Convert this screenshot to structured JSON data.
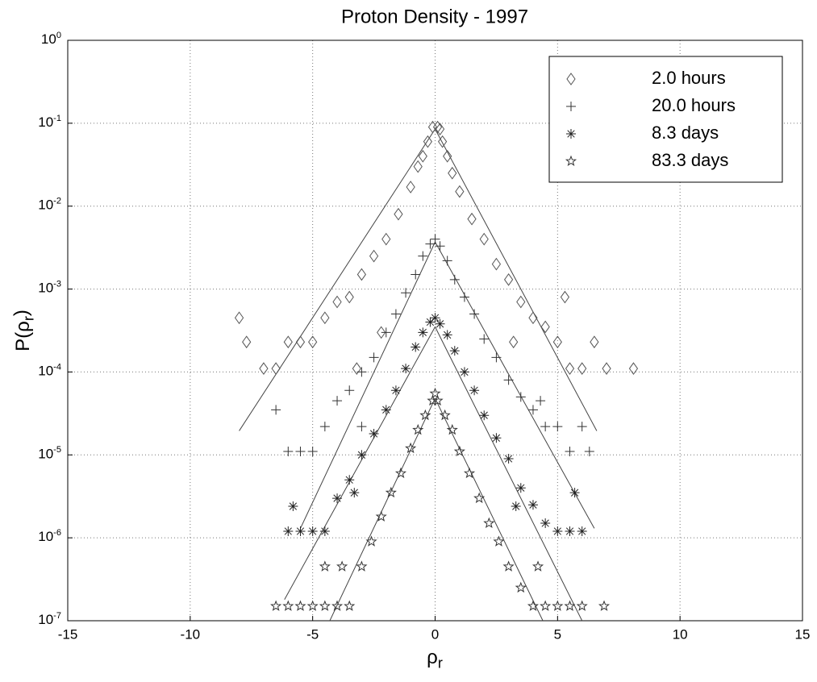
{
  "chart_data": {
    "type": "scatter",
    "title": "Proton Density - 1997",
    "xlabel": "ρ_r",
    "ylabel": "P(ρ_r)",
    "xlim": [
      -15,
      15
    ],
    "xticks": [
      -15,
      -10,
      -5,
      0,
      5,
      10,
      15
    ],
    "ylim": [
      1e-07,
      1
    ],
    "yticks": [
      {
        "value": 1e-07,
        "label": "10^-7"
      },
      {
        "value": 1e-06,
        "label": "10^-6"
      },
      {
        "value": 1e-05,
        "label": "10^-5"
      },
      {
        "value": 0.0001,
        "label": "10^-4"
      },
      {
        "value": 0.001,
        "label": "10^-3"
      },
      {
        "value": 0.01,
        "label": "10^-2"
      },
      {
        "value": 0.1,
        "label": "10^-1"
      },
      {
        "value": 1,
        "label": "10^0"
      }
    ],
    "log_y": true,
    "grid": true,
    "legend": "upper right",
    "series": [
      {
        "name": "2.0 hours",
        "marker": "diamond",
        "color": "#555555",
        "x": [
          -0.1,
          0.1,
          0.2,
          -0.3,
          0.3,
          -0.5,
          0.5,
          -0.7,
          0.7,
          -1,
          1,
          -1.5,
          1.5,
          -2,
          2,
          -2.5,
          2.5,
          -3,
          3,
          -3.5,
          3.5,
          -4,
          4,
          -4.5,
          4.5,
          -5,
          5,
          -5.5,
          5.5,
          -6,
          6,
          -6.5,
          6.5,
          -7,
          7,
          -8,
          -7.7,
          8.1,
          5.3,
          -3.2,
          3.2,
          -2.2
        ],
        "values": [
          0.09,
          0.09,
          0.085,
          0.06,
          0.06,
          0.04,
          0.04,
          0.03,
          0.025,
          0.017,
          0.015,
          0.008,
          0.007,
          0.004,
          0.004,
          0.0025,
          0.002,
          0.0015,
          0.0013,
          0.0008,
          0.0007,
          0.0007,
          0.00045,
          0.00045,
          0.00035,
          0.00023,
          0.00023,
          0.00023,
          0.00011,
          0.00023,
          0.00011,
          0.00011,
          0.00023,
          0.00011,
          0.00011,
          0.00045,
          0.00023,
          0.00011,
          0.0008,
          0.00011,
          0.00023,
          0.0003
        ]
      },
      {
        "name": "20.0 hours",
        "marker": "plus",
        "color": "#333333",
        "x": [
          0,
          -0.2,
          0.2,
          -0.5,
          0.5,
          -0.8,
          0.8,
          -1.2,
          1.2,
          -1.6,
          1.6,
          -2,
          2,
          -2.5,
          2.5,
          -3,
          3,
          -3.5,
          3.5,
          -4,
          4,
          -4.5,
          4.5,
          -5,
          5,
          -5.5,
          5.5,
          -6,
          6.3,
          -6.5,
          4.3,
          -3,
          6.0
        ],
        "values": [
          0.004,
          0.0035,
          0.0033,
          0.0025,
          0.0022,
          0.0015,
          0.0013,
          0.0009,
          0.0008,
          0.0005,
          0.0005,
          0.0003,
          0.00025,
          0.00015,
          0.00015,
          0.0001,
          8e-05,
          6e-05,
          5e-05,
          4.5e-05,
          3.5e-05,
          2.2e-05,
          2.2e-05,
          1.1e-05,
          2.2e-05,
          1.1e-05,
          1.1e-05,
          1.1e-05,
          1.1e-05,
          3.5e-05,
          4.5e-05,
          2.2e-05,
          2.2e-05
        ]
      },
      {
        "name": "8.3 days",
        "marker": "asterisk",
        "color": "#222222",
        "x": [
          0,
          -0.2,
          0.2,
          -0.5,
          0.5,
          -0.8,
          0.8,
          -1.2,
          1.2,
          -1.6,
          1.6,
          -2,
          2,
          -2.5,
          2.5,
          -3,
          3,
          -3.5,
          3.5,
          -4,
          4,
          -4.5,
          4.5,
          -5,
          5,
          -5.5,
          5.5,
          -6,
          6,
          -5.8,
          5.7,
          -3.3,
          3.3
        ],
        "values": [
          0.00045,
          0.0004,
          0.00038,
          0.0003,
          0.00028,
          0.0002,
          0.00018,
          0.00011,
          0.0001,
          6e-05,
          6e-05,
          3.5e-05,
          3e-05,
          1.8e-05,
          1.6e-05,
          1e-05,
          9e-06,
          5e-06,
          4e-06,
          3e-06,
          2.5e-06,
          1.2e-06,
          1.5e-06,
          1.2e-06,
          1.2e-06,
          1.2e-06,
          1.2e-06,
          1.2e-06,
          1.2e-06,
          2.4e-06,
          3.5e-06,
          3.5e-06,
          2.4e-06
        ]
      },
      {
        "name": "83.3 days",
        "marker": "star",
        "color": "#333333",
        "x": [
          0,
          -0.1,
          0.1,
          -0.4,
          0.4,
          -0.7,
          0.7,
          -1,
          1,
          -1.4,
          1.4,
          -1.8,
          1.8,
          -2.2,
          2.2,
          -2.6,
          2.6,
          -3,
          3,
          -3.5,
          3.5,
          -4,
          4,
          -4.5,
          4.5,
          -5,
          5,
          -5.5,
          5.5,
          -6,
          6,
          -6.5,
          6.9,
          -3.8,
          -4.5,
          4.2
        ],
        "values": [
          5.5e-05,
          4.5e-05,
          4.5e-05,
          3e-05,
          3e-05,
          2e-05,
          2e-05,
          1.2e-05,
          1.1e-05,
          6e-06,
          6e-06,
          3.5e-06,
          3e-06,
          1.8e-06,
          1.5e-06,
          9e-07,
          9e-07,
          4.5e-07,
          4.5e-07,
          1.5e-07,
          2.5e-07,
          1.5e-07,
          1.5e-07,
          1.5e-07,
          1.5e-07,
          1.5e-07,
          1.5e-07,
          1.5e-07,
          1.5e-07,
          1.5e-07,
          1.5e-07,
          1.5e-07,
          1.5e-07,
          4.5e-07,
          4.5e-07,
          4.5e-07
        ]
      }
    ],
    "fit_lines": [
      {
        "color": "#444444",
        "x": [
          -8,
          0,
          6.6
        ],
        "values": [
          1.95e-05,
          0.085,
          1.95e-05
        ]
      },
      {
        "color": "#444444",
        "x": [
          -5.5,
          0,
          6.5
        ],
        "values": [
          1.3e-06,
          0.0037,
          1.3e-06
        ]
      },
      {
        "color": "#444444",
        "x": [
          -6.15,
          0,
          6
        ],
        "values": [
          1.8e-07,
          0.00035,
          1e-07
        ]
      },
      {
        "color": "#444444",
        "x": [
          -4.3,
          0,
          4.4
        ],
        "values": [
          1e-07,
          4.8e-05,
          1e-07
        ]
      }
    ]
  }
}
